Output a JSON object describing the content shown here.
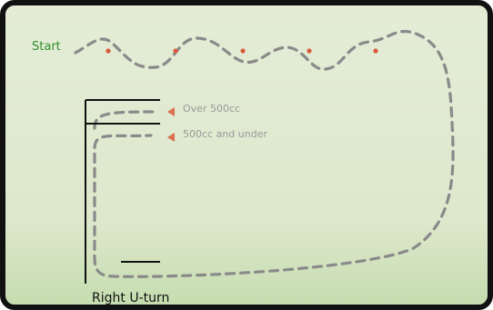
{
  "diagram": {
    "start_label": "Start",
    "lanes": [
      {
        "label": "Over 500cc"
      },
      {
        "label": "500cc and under"
      }
    ],
    "turn_label": "Right U-turn",
    "colors": {
      "background": "#e0e9d2",
      "border": "#111111",
      "path": "#8a8a8a",
      "cone": "#d95a3c",
      "start_text": "#2f8f2f",
      "lane_text": "#9a9a9a",
      "arrow": "#d9704f"
    },
    "cone_count": 5
  }
}
